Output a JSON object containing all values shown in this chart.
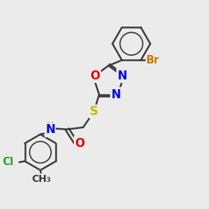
{
  "background_color": "#ebebeb",
  "bond_color": "#3a3a3a",
  "bond_width": 1.8,
  "atom_colors": {
    "N": "#0000ee",
    "O": "#ee0000",
    "S": "#bbbb00",
    "Br": "#cc7700",
    "Cl": "#22aa22",
    "C": "#3a3a3a",
    "H": "#888888"
  }
}
